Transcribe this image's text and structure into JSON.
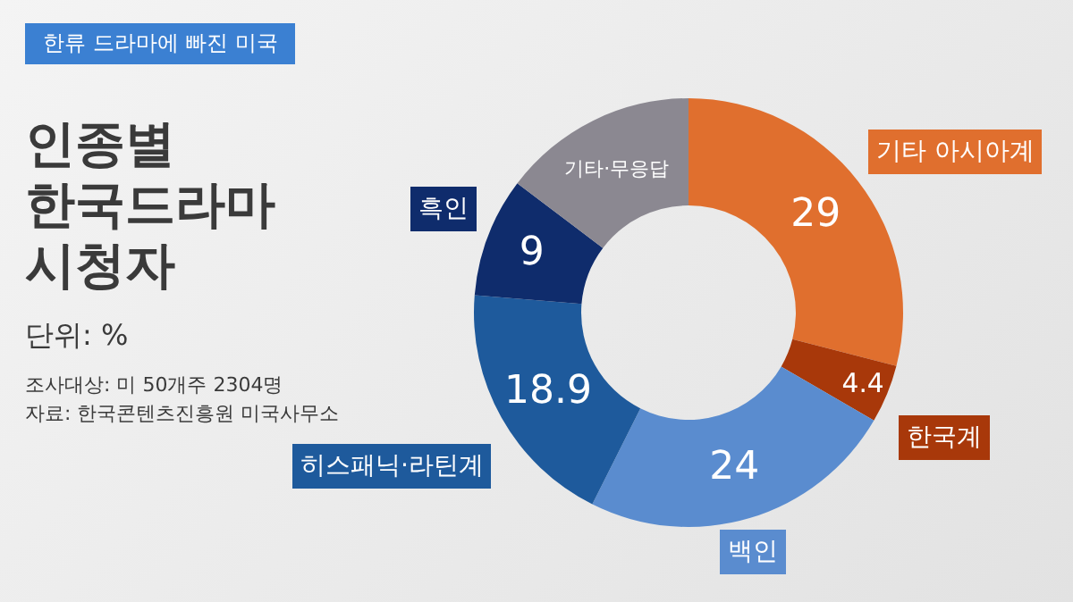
{
  "chart_data": {
    "type": "donut",
    "title": "인종별 한국드라마 시청자",
    "subtitle": "단위: %",
    "annotations": [
      "한류 드라마에 빠진 미국",
      "조사대상: 미 50개주 2304명",
      "자료: 한국콘텐츠진흥원 미국사무소"
    ],
    "categories": [
      "기타 아시아계",
      "한국계",
      "백인",
      "히스패닉·라틴계",
      "흑인",
      "기타·무응답"
    ],
    "values": [
      29,
      4.4,
      24,
      18.9,
      9,
      14.7
    ],
    "value_labels": [
      "29",
      "4.4",
      "24",
      "18.9",
      "9",
      null
    ],
    "colors": [
      "#e06f2e",
      "#a8380a",
      "#5a8ccf",
      "#1e5a9c",
      "#0f2c6c",
      "#8b8891"
    ],
    "legend": false
  }
}
